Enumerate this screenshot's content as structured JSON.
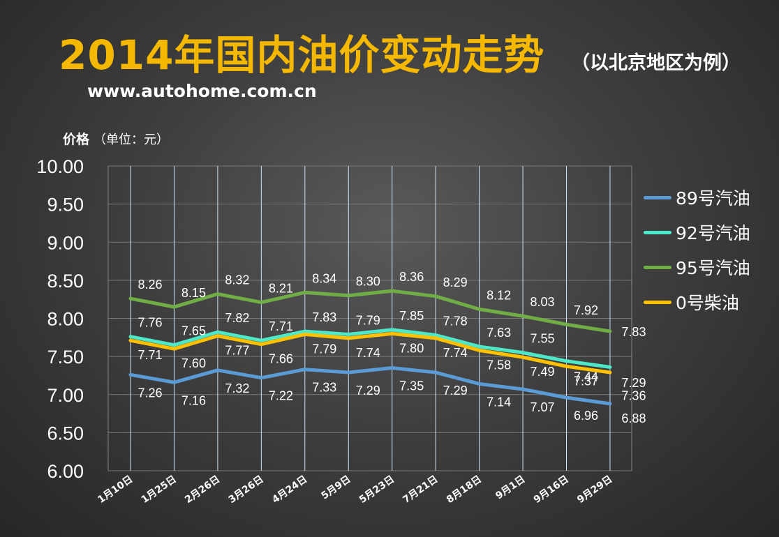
{
  "header": {
    "title": "2014年国内油价变动走势",
    "subtitle": "（以北京地区为例）",
    "url": "www.autohome.com.cn"
  },
  "axis": {
    "ylabel": "价格",
    "yunit": "（单位：元）"
  },
  "chart_data": {
    "type": "line",
    "title": "2014年国内油价变动走势",
    "subtitle": "（以北京地区为例）",
    "ylabel": "价格 （单位：元）",
    "xlabel": "",
    "ylim": [
      6.0,
      10.0
    ],
    "y_ticks": [
      "6.00",
      "6.50",
      "7.00",
      "7.50",
      "8.00",
      "8.50",
      "9.00",
      "9.50",
      "10.00"
    ],
    "grid": true,
    "legend_position": "right",
    "categories": [
      "1月10日",
      "1月25日",
      "2月26日",
      "3月26日",
      "4月24日",
      "5月9日",
      "5月23日",
      "7月21日",
      "8月18日",
      "9月1日",
      "9月16日",
      "9月29日"
    ],
    "series": [
      {
        "name": "89号汽油",
        "color": "#5b9bd5",
        "values": [
          7.26,
          7.16,
          7.32,
          7.22,
          7.33,
          7.29,
          7.35,
          7.29,
          7.14,
          7.07,
          6.96,
          6.88
        ]
      },
      {
        "name": "92号汽油",
        "color": "#4ee8c8",
        "values": [
          7.76,
          7.65,
          7.82,
          7.71,
          7.83,
          7.79,
          7.85,
          7.78,
          7.63,
          7.55,
          7.44,
          7.36
        ]
      },
      {
        "name": "95号汽油",
        "color": "#70ad47",
        "values": [
          8.26,
          8.15,
          8.32,
          8.21,
          8.34,
          8.3,
          8.36,
          8.29,
          8.12,
          8.03,
          7.92,
          7.83
        ]
      },
      {
        "name": "0号柴油",
        "color": "#ffc000",
        "values": [
          7.71,
          7.6,
          7.77,
          7.66,
          7.79,
          7.74,
          7.8,
          7.74,
          7.58,
          7.49,
          7.37,
          7.29
        ]
      }
    ]
  }
}
